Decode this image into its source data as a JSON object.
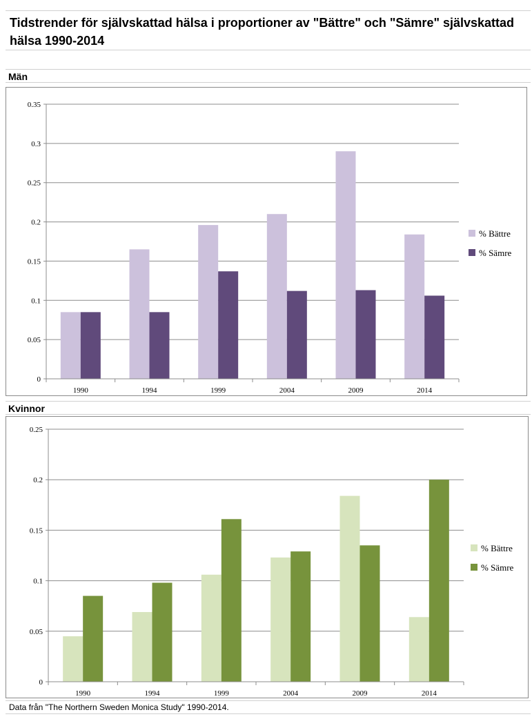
{
  "header": {
    "title": "Tidstrender för självskattad hälsa i proportioner av \"Bättre\" och \"Sämre\" självskattad hälsa 1990-2014"
  },
  "sections": {
    "men_label": "Män",
    "women_label": "Kvinnor"
  },
  "footer": {
    "source": "Data från \"The Northern Sweden Monica Study\" 1990-2014."
  },
  "chart_data": [
    {
      "type": "bar",
      "categories": [
        "1990",
        "1994",
        "1999",
        "2004",
        "2009",
        "2014"
      ],
      "series": [
        {
          "name": "% Bättre",
          "values": [
            0.085,
            0.165,
            0.196,
            0.21,
            0.29,
            0.184
          ],
          "color": "#ccc1dc"
        },
        {
          "name": "% Sämre",
          "values": [
            0.085,
            0.085,
            0.137,
            0.112,
            0.113,
            0.106
          ],
          "color": "#604a7b"
        }
      ],
      "ylim": [
        0,
        0.35
      ],
      "yticks": [
        0,
        0.05,
        0.1,
        0.15,
        0.2,
        0.25,
        0.3,
        0.35
      ],
      "ytick_labels": [
        "0",
        "0.05",
        "0.1",
        "0.15",
        "0.2",
        "0.25",
        "0.3",
        "0.35"
      ],
      "grid": true,
      "legend": "right",
      "title": "",
      "xlabel": "",
      "ylabel": ""
    },
    {
      "type": "bar",
      "categories": [
        "1990",
        "1994",
        "1999",
        "2004",
        "2009",
        "2014"
      ],
      "series": [
        {
          "name": "% Bättre",
          "values": [
            0.045,
            0.069,
            0.106,
            0.123,
            0.184,
            0.064
          ],
          "color": "#d7e4bd"
        },
        {
          "name": "% Sämre",
          "values": [
            0.085,
            0.098,
            0.161,
            0.129,
            0.135,
            0.2
          ],
          "color": "#77933c"
        }
      ],
      "ylim": [
        0,
        0.25
      ],
      "yticks": [
        0,
        0.05,
        0.1,
        0.15,
        0.2,
        0.25
      ],
      "ytick_labels": [
        "0",
        "0.05",
        "0.1",
        "0.15",
        "0.2",
        "0.25"
      ],
      "grid": true,
      "legend": "right",
      "title": "",
      "xlabel": "",
      "ylabel": ""
    }
  ]
}
